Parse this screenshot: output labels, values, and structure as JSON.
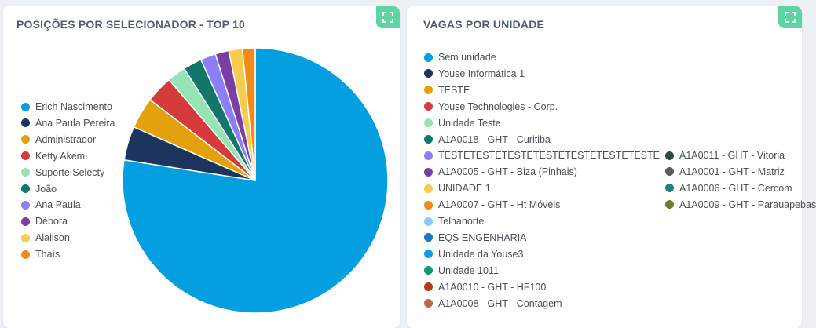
{
  "left_card": {
    "title": "POSIÇÕES POR SELECIONADOR - TOP 10",
    "expand_icon": "expand-icon"
  },
  "right_card": {
    "title": "VAGAS POR UNIDADE",
    "expand_icon": "expand-icon"
  },
  "chart_data": [
    {
      "type": "pie",
      "title": "POSIÇÕES POR SELECIONADOR - TOP 10",
      "legend_position": "left",
      "labels": [
        "Erich Nascimento",
        "Ana Paula Pereira",
        "Administrador",
        "Ketty Akemi",
        "Suporte Selecty",
        "João",
        "Ana Paula",
        "Débora",
        "Alailson",
        "Thaís"
      ],
      "values": [
        75,
        4,
        3.7,
        3.2,
        2.2,
        2.2,
        1.8,
        1.6,
        1.6,
        1.5
      ],
      "colors": [
        "#049fe1",
        "#1d345e",
        "#e3a20b",
        "#d63b3b",
        "#95e4b4",
        "#12766a",
        "#8b7ef7",
        "#7a3fa5",
        "#f7cc4c",
        "#f28a1b"
      ]
    },
    {
      "type": "pie",
      "title": "VAGAS POR UNIDADE",
      "legend_position": "left",
      "labels": [
        "Sem unidade",
        "Youse Informática 1",
        "TESTE",
        "Youse Technologies - Corp.",
        "Unidade Teste",
        "A1A0018 - GHT - Curitiba",
        "TESTETESTETESTETESTETESTETESTETESTE",
        "A1A0005 - GHT - Biza (Pinhais)",
        "UNIDADE 1",
        "A1A0007 - GHT - Ht Móveis",
        "Telhanorte",
        "EQS ENGENHARIA",
        "Unidade da Youse3",
        "Unidade 1011",
        "A1A0010 - GHT - HF100",
        "A1A0008 - GHT - Contagem",
        "A1A0011 - GHT - Vitoria",
        "A1A0001 - GHT - Matriz",
        "A1A0006 - GHT - Cercom",
        "A1A0009 - GHT - Parauapebas"
      ],
      "colors": [
        "#049fe1",
        "#1d345e",
        "#e3a20b",
        "#d63b3b",
        "#95e4b4",
        "#12766a",
        "#8b7ef7",
        "#7a3fa5",
        "#f7cc4c",
        "#f28a1b",
        "#8ec9f4",
        "#1f73c9",
        "#129ce8",
        "#11987a",
        "#b53818",
        "#c96442",
        "#2f4c43",
        "#595d5e",
        "#207e85",
        "#6b7f2b"
      ]
    }
  ]
}
